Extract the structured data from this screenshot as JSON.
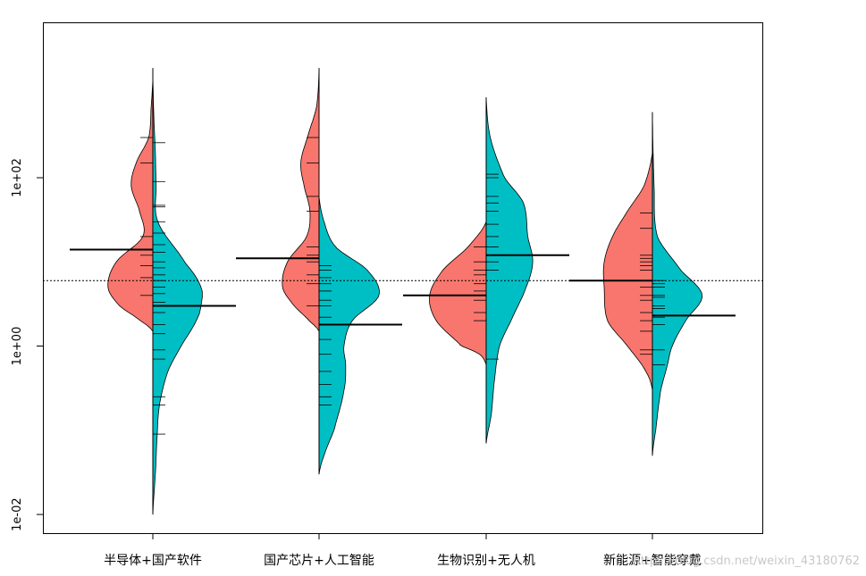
{
  "chart_data": {
    "type": "beanplot",
    "y_scale": "log10",
    "ylim": [
      0.006,
      7000
    ],
    "y_ticks": [
      {
        "value": 0.01,
        "label": "1e-02"
      },
      {
        "value": 1,
        "label": "1e+00"
      },
      {
        "value": 100,
        "label": "1e+02"
      }
    ],
    "overall_mean": 6.0,
    "colors": {
      "left": "#F8766D",
      "right": "#00BFC4",
      "lines": "#000000"
    },
    "categories": [
      {
        "label": "半导体+国产软件",
        "left": {
          "mean": 14,
          "min": 1.5,
          "max": 1500,
          "density": [
            [
              1.5,
              0.0
            ],
            [
              2,
              0.15
            ],
            [
              3,
              0.4
            ],
            [
              5,
              0.54
            ],
            [
              10,
              0.44
            ],
            [
              20,
              0.12
            ],
            [
              40,
              0.16
            ],
            [
              80,
              0.26
            ],
            [
              150,
              0.2
            ],
            [
              300,
              0.05
            ],
            [
              700,
              0.02
            ],
            [
              1500,
              0.0
            ]
          ],
          "obs": [
            4.0,
            6.5,
            9.0,
            12.0,
            20.0,
            150.0,
            300.0
          ]
        },
        "right": {
          "mean": 3.0,
          "min": 0.01,
          "max": 2000,
          "density": [
            [
              0.01,
              0.0
            ],
            [
              0.03,
              0.03
            ],
            [
              0.08,
              0.05
            ],
            [
              0.2,
              0.08
            ],
            [
              0.5,
              0.18
            ],
            [
              1,
              0.34
            ],
            [
              2,
              0.52
            ],
            [
              3,
              0.58
            ],
            [
              5,
              0.58
            ],
            [
              10,
              0.38
            ],
            [
              30,
              0.06
            ],
            [
              80,
              0.04
            ],
            [
              200,
              0.03
            ],
            [
              600,
              0.01
            ],
            [
              2000,
              0.0
            ]
          ],
          "obs": [
            0.09,
            0.2,
            0.25,
            0.7,
            0.9,
            1.4,
            1.8,
            2.5,
            3.3,
            4.2,
            5.0,
            6.0,
            7.0,
            8.5,
            10.0,
            13.0,
            16.0,
            22.0,
            30.0,
            45.0,
            47.0,
            90.0,
            260.0
          ]
        }
      },
      {
        "label": "国产芯片+人工智能",
        "left": {
          "mean": 11,
          "min": 1.5,
          "max": 2000,
          "density": [
            [
              1.5,
              0.0
            ],
            [
              2,
              0.12
            ],
            [
              3,
              0.3
            ],
            [
              5,
              0.44
            ],
            [
              10,
              0.38
            ],
            [
              20,
              0.15
            ],
            [
              40,
              0.11
            ],
            [
              80,
              0.18
            ],
            [
              150,
              0.22
            ],
            [
              300,
              0.14
            ],
            [
              700,
              0.03
            ],
            [
              2000,
              0.0
            ]
          ],
          "obs": [
            3.0,
            5.5,
            7.0,
            10.0,
            12.0,
            15.0,
            40.0,
            60.0,
            150.0,
            300.0
          ]
        },
        "right": {
          "mean": 1.8,
          "min": 0.03,
          "max": 60,
          "density": [
            [
              0.03,
              0.0
            ],
            [
              0.05,
              0.06
            ],
            [
              0.1,
              0.18
            ],
            [
              0.3,
              0.3
            ],
            [
              0.6,
              0.32
            ],
            [
              1,
              0.3
            ],
            [
              2,
              0.4
            ],
            [
              4,
              0.72
            ],
            [
              8,
              0.58
            ],
            [
              15,
              0.2
            ],
            [
              30,
              0.06
            ],
            [
              60,
              0.0
            ]
          ],
          "obs": [
            0.2,
            0.25,
            0.35,
            0.5,
            0.8,
            1.2,
            1.8,
            2.2,
            3.0,
            3.5,
            4.5,
            5.5,
            6.5,
            8.0,
            9.0
          ]
        }
      },
      {
        "label": "生物识别+无人机",
        "left": {
          "mean": 4.0,
          "min": 0.6,
          "max": 30,
          "density": [
            [
              0.6,
              0.0
            ],
            [
              0.8,
              0.08
            ],
            [
              1,
              0.3
            ],
            [
              2,
              0.6
            ],
            [
              4,
              0.68
            ],
            [
              8,
              0.52
            ],
            [
              15,
              0.22
            ],
            [
              30,
              0.0
            ]
          ],
          "obs": [
            2.0,
            2.5,
            3.5,
            4.5,
            5.5,
            7.0,
            8.0,
            10.0,
            15.0
          ]
        },
        "right": {
          "mean": 12,
          "min": 0.07,
          "max": 900,
          "density": [
            [
              0.07,
              0.0
            ],
            [
              0.15,
              0.06
            ],
            [
              0.4,
              0.1
            ],
            [
              1,
              0.16
            ],
            [
              2,
              0.3
            ],
            [
              5,
              0.48
            ],
            [
              10,
              0.56
            ],
            [
              20,
              0.5
            ],
            [
              50,
              0.45
            ],
            [
              100,
              0.22
            ],
            [
              300,
              0.05
            ],
            [
              900,
              0.0
            ]
          ],
          "obs": [
            0.7,
            8.0,
            10.0,
            12.0,
            15.0,
            20.0,
            28.0,
            40.0,
            50.0,
            60.0,
            100.0,
            110.0
          ]
        }
      },
      {
        "label": "新能源+智能穿戴",
        "left": {
          "mean": 6,
          "min": 0.3,
          "max": 200,
          "density": [
            [
              0.3,
              0.0
            ],
            [
              0.5,
              0.08
            ],
            [
              1,
              0.3
            ],
            [
              2,
              0.54
            ],
            [
              5,
              0.58
            ],
            [
              10,
              0.58
            ],
            [
              20,
              0.48
            ],
            [
              40,
              0.3
            ],
            [
              80,
              0.1
            ],
            [
              200,
              0.0
            ]
          ],
          "obs": [
            0.8,
            0.9,
            1.5,
            2.0,
            2.5,
            3.5,
            4.0,
            5.0,
            6.0,
            8.0,
            9.0,
            10.0,
            11.0,
            12.0,
            25.0,
            38.0
          ]
        },
        "right": {
          "mean": 2.3,
          "min": 0.05,
          "max": 600,
          "density": [
            [
              0.05,
              0.0
            ],
            [
              0.1,
              0.04
            ],
            [
              0.3,
              0.1
            ],
            [
              0.6,
              0.18
            ],
            [
              1,
              0.24
            ],
            [
              2,
              0.4
            ],
            [
              4,
              0.6
            ],
            [
              8,
              0.34
            ],
            [
              20,
              0.06
            ],
            [
              80,
              0.02
            ],
            [
              600,
              0.0
            ]
          ],
          "obs": [
            0.6,
            0.9,
            1.8,
            2.2,
            2.8,
            3.0,
            3.8,
            4.0,
            5.0,
            5.5,
            6.0
          ]
        }
      }
    ],
    "watermark": "https://blog.csdn.net/weixin_43180762"
  }
}
